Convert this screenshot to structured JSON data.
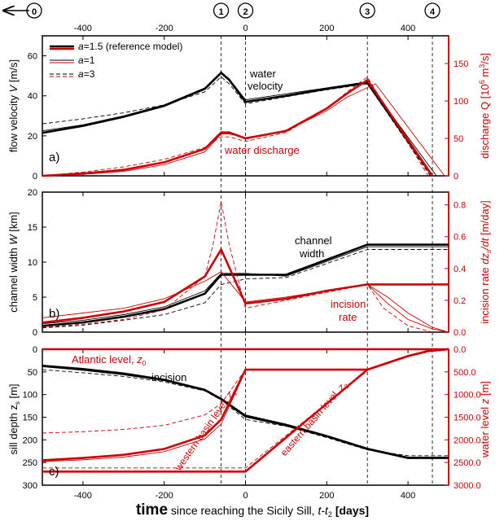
{
  "colors": {
    "black": "#000000",
    "red": "#cc0000"
  },
  "x_axis": {
    "ticks": [
      -400,
      -200,
      0,
      200,
      400
    ],
    "range": [
      -500,
      500
    ],
    "label_time": "time",
    "label_rest": " since reaching the Sicily Sill, ",
    "label_var": "t-t",
    "label_sub": "2",
    "label_unit": "[days]"
  },
  "events": [
    {
      "id": "0",
      "x": -500
    },
    {
      "id": "1",
      "x": -60
    },
    {
      "id": "2",
      "x": 0
    },
    {
      "id": "3",
      "x": 300
    },
    {
      "id": "4",
      "x": 460
    }
  ],
  "legend": [
    {
      "key": "a",
      "value": "=1.5 (reference model)",
      "style": "thick"
    },
    {
      "key": "a",
      "value": "=1",
      "style": "thin"
    },
    {
      "key": "a",
      "value": "=3",
      "style": "dashed"
    }
  ],
  "chart_data": [
    {
      "type": "line",
      "panel": "a)",
      "ylabel_left": "flow velocity V [m/s]",
      "ylabel_right": "discharge Q [10^6 m^3/s]",
      "ylim_left": [
        0,
        70
      ],
      "ylim_right": [
        0,
        187
      ],
      "yticks_left": [
        0,
        20,
        40,
        60
      ],
      "yticks_right": [
        0,
        50,
        100,
        150
      ],
      "annotations": [
        "water velocity",
        "water discharge"
      ],
      "series": [
        {
          "name": "a=1.5 (reference model)",
          "quantity": "velocity",
          "axis": "left",
          "color": "black",
          "style": "thick",
          "x": [
            -500,
            -400,
            -300,
            -200,
            -100,
            -60,
            -40,
            0,
            100,
            200,
            300,
            460
          ],
          "y": [
            21.5,
            25,
            29.5,
            35,
            43.5,
            51.5,
            48,
            37,
            40,
            43.5,
            46.5,
            0
          ]
        },
        {
          "name": "a=1",
          "quantity": "velocity",
          "axis": "left",
          "color": "black",
          "style": "thin",
          "x": [
            -500,
            -400,
            -300,
            -200,
            -100,
            -60,
            -40,
            0,
            100,
            200,
            300,
            470
          ],
          "y": [
            22.5,
            25.5,
            30,
            35.5,
            44,
            52,
            48.5,
            38,
            41,
            44,
            47,
            0
          ]
        },
        {
          "name": "a=3",
          "quantity": "velocity",
          "axis": "left",
          "color": "black",
          "style": "dashed",
          "x": [
            -500,
            -400,
            -300,
            -200,
            -100,
            -60,
            -40,
            0,
            100,
            200,
            300,
            455
          ],
          "y": [
            26,
            28.5,
            31.5,
            35.5,
            42,
            49.5,
            46,
            36,
            39.5,
            43,
            46,
            0
          ]
        },
        {
          "name": "a=1.5 (reference model)",
          "quantity": "discharge",
          "axis": "right",
          "color": "red",
          "style": "thick",
          "x": [
            -500,
            -400,
            -300,
            -200,
            -100,
            -60,
            -40,
            0,
            100,
            200,
            250,
            300,
            460
          ],
          "y": [
            0,
            3,
            8,
            18,
            36,
            58,
            58,
            50,
            60,
            90,
            110,
            128,
            0
          ]
        },
        {
          "name": "a=1",
          "quantity": "discharge",
          "axis": "right",
          "color": "red",
          "style": "thin",
          "x": [
            -500,
            -400,
            -300,
            -200,
            -100,
            -60,
            -40,
            0,
            100,
            200,
            250,
            320,
            490
          ],
          "y": [
            0,
            2,
            6,
            15,
            32,
            56,
            56,
            51,
            60,
            87,
            105,
            123,
            0
          ]
        },
        {
          "name": "a=3",
          "quantity": "discharge",
          "axis": "right",
          "color": "red",
          "style": "dashed",
          "x": [
            -500,
            -400,
            -300,
            -200,
            -100,
            -60,
            -40,
            0,
            100,
            200,
            250,
            300,
            450
          ],
          "y": [
            0,
            5,
            12,
            22,
            38,
            52,
            52,
            46,
            58,
            90,
            112,
            132,
            0
          ]
        }
      ]
    },
    {
      "type": "line",
      "panel": "b)",
      "ylabel_left": "channel width W [km]",
      "ylabel_right": "incision rate dzs/dt [m/day]",
      "ylim_left": [
        0,
        20
      ],
      "ylim_right": [
        0,
        0.88
      ],
      "yticks_left": [
        0,
        5,
        10,
        15,
        20
      ],
      "yticks_right": [
        0.0,
        0.2,
        0.4,
        0.6,
        0.8
      ],
      "annotations": [
        "channel width",
        "incision rate"
      ],
      "series": [
        {
          "name": "a=1.5 (reference model)",
          "quantity": "width",
          "axis": "left",
          "color": "black",
          "style": "thick",
          "x": [
            -500,
            -400,
            -300,
            -200,
            -100,
            -60,
            0,
            100,
            300,
            500
          ],
          "y": [
            0.9,
            1.4,
            2.2,
            3.3,
            5.5,
            8.2,
            8.2,
            8.2,
            12.5,
            12.5
          ]
        },
        {
          "name": "a=1",
          "quantity": "width",
          "axis": "left",
          "color": "black",
          "style": "thin",
          "x": [
            -500,
            -400,
            -300,
            -200,
            -100,
            -60,
            0,
            100,
            300,
            500
          ],
          "y": [
            1.2,
            1.7,
            2.5,
            3.6,
            5.9,
            8.4,
            8.4,
            8.0,
            12.2,
            12.2
          ]
        },
        {
          "name": "a=3",
          "quantity": "width",
          "axis": "left",
          "color": "black",
          "style": "dashed",
          "x": [
            -500,
            -400,
            -300,
            -200,
            -100,
            -60,
            0,
            100,
            300,
            500
          ],
          "y": [
            0.6,
            1.0,
            1.7,
            2.5,
            4.2,
            6.8,
            7.6,
            7.8,
            11.8,
            11.8
          ]
        },
        {
          "name": "a=1.5 (reference model)",
          "quantity": "incision",
          "axis": "right",
          "color": "red",
          "style": "thick",
          "x": [
            -500,
            -400,
            -300,
            -200,
            -100,
            -60,
            0,
            100,
            200,
            300,
            500
          ],
          "y": [
            0.06,
            0.09,
            0.13,
            0.19,
            0.35,
            0.52,
            0.18,
            0.21,
            0.26,
            0.3,
            0.3
          ]
        },
        {
          "name": "a=1",
          "quantity": "incision",
          "axis": "right",
          "color": "red",
          "style": "thin",
          "x": [
            -500,
            -400,
            -300,
            -200,
            -100,
            -60,
            0,
            100,
            200,
            300,
            350,
            400,
            460,
            500
          ],
          "y": [
            0.09,
            0.12,
            0.15,
            0.21,
            0.32,
            0.38,
            0.19,
            0.22,
            0.26,
            0.3,
            0.22,
            0.12,
            0.03,
            0.0
          ]
        },
        {
          "name": "a=3",
          "quantity": "incision",
          "axis": "right",
          "color": "red",
          "style": "dashed",
          "x": [
            -500,
            -400,
            -300,
            -200,
            -100,
            -80,
            -60,
            -40,
            0,
            100,
            200,
            300,
            340,
            400,
            460
          ],
          "y": [
            0.03,
            0.05,
            0.08,
            0.14,
            0.35,
            0.55,
            0.82,
            0.55,
            0.15,
            0.2,
            0.25,
            0.3,
            0.15,
            0.04,
            0.0
          ]
        },
        {
          "name": "a=1.5 decay",
          "quantity": "incision",
          "axis": "right",
          "color": "red",
          "style": "thin",
          "x": [
            300,
            350,
            400,
            460,
            500
          ],
          "y": [
            0.3,
            0.18,
            0.08,
            0.02,
            0.0
          ]
        }
      ]
    },
    {
      "type": "line",
      "panel": "c)",
      "ylabel_left": "sill depth zs [m]",
      "ylabel_right": "water level z [m]",
      "ylim_left": [
        300,
        0
      ],
      "ylim_right": [
        3000,
        0
      ],
      "yticks_left": [
        0,
        50,
        100,
        150,
        200,
        250,
        300
      ],
      "yticks_right": [
        0,
        500,
        1000,
        1500,
        2000,
        2500,
        3000
      ],
      "annotations": [
        "Atlantic level, z0",
        "incision",
        "western basin level, z1",
        "eastern basin level, z2"
      ],
      "series": [
        {
          "name": "a=1.5 (reference model)",
          "quantity": "sill depth",
          "axis": "left",
          "color": "black",
          "style": "thick",
          "x": [
            -500,
            -400,
            -300,
            -200,
            -100,
            -60,
            0,
            100,
            200,
            300,
            400,
            500
          ],
          "y": [
            37,
            45,
            55,
            68,
            90,
            110,
            148,
            168,
            192,
            220,
            240,
            240
          ]
        },
        {
          "name": "a=1",
          "quantity": "sill depth",
          "axis": "left",
          "color": "black",
          "style": "thin",
          "x": [
            -500,
            -400,
            -300,
            -200,
            -100,
            -60,
            0,
            100,
            200,
            300,
            400,
            500
          ],
          "y": [
            35,
            42,
            52,
            66,
            88,
            108,
            145,
            165,
            190,
            218,
            238,
            238
          ]
        },
        {
          "name": "a=3",
          "quantity": "sill depth",
          "axis": "left",
          "color": "black",
          "style": "dashed",
          "x": [
            -500,
            -400,
            -300,
            -200,
            -100,
            -60,
            0,
            100,
            200,
            300,
            400,
            500
          ],
          "y": [
            45,
            52,
            60,
            72,
            92,
            112,
            155,
            170,
            195,
            222,
            235,
            235
          ]
        },
        {
          "name": "Atlantic level, z0",
          "quantity": "water level",
          "axis": "right",
          "color": "red",
          "style": "thick",
          "x": [
            -500,
            500
          ],
          "y": [
            0,
            0
          ]
        },
        {
          "name": "western basin level, z1",
          "quantity": "water level",
          "axis": "right",
          "color": "red",
          "style": "thick",
          "x": [
            -500,
            -400,
            -300,
            -200,
            -100,
            -60,
            0,
            300,
            400,
            450,
            500
          ],
          "y": [
            2450,
            2400,
            2330,
            2200,
            1900,
            1550,
            450,
            450,
            150,
            40,
            0
          ]
        },
        {
          "name": "eastern basin level, z2",
          "quantity": "water level",
          "axis": "right",
          "color": "red",
          "style": "thick",
          "x": [
            -500,
            0,
            300,
            400,
            450,
            500
          ],
          "y": [
            2700,
            2700,
            450,
            150,
            40,
            0
          ]
        },
        {
          "name": "a=1 western",
          "quantity": "water level",
          "axis": "right",
          "color": "red",
          "style": "thin",
          "x": [
            -500,
            -400,
            -300,
            -200,
            -100,
            -60,
            0
          ],
          "y": [
            2480,
            2440,
            2380,
            2260,
            1980,
            1650,
            480
          ]
        },
        {
          "name": "a=3 western",
          "quantity": "water level",
          "axis": "right",
          "color": "red",
          "style": "dashed",
          "x": [
            -500,
            -400,
            -300,
            -200,
            -100,
            -60,
            0
          ],
          "y": [
            1850,
            1820,
            1770,
            1680,
            1450,
            1200,
            450
          ]
        },
        {
          "name": "a=3 eastern",
          "quantity": "water level",
          "axis": "right",
          "color": "red",
          "style": "dashed",
          "x": [
            -500,
            0,
            300
          ],
          "y": [
            2620,
            2620,
            480
          ]
        }
      ]
    }
  ]
}
